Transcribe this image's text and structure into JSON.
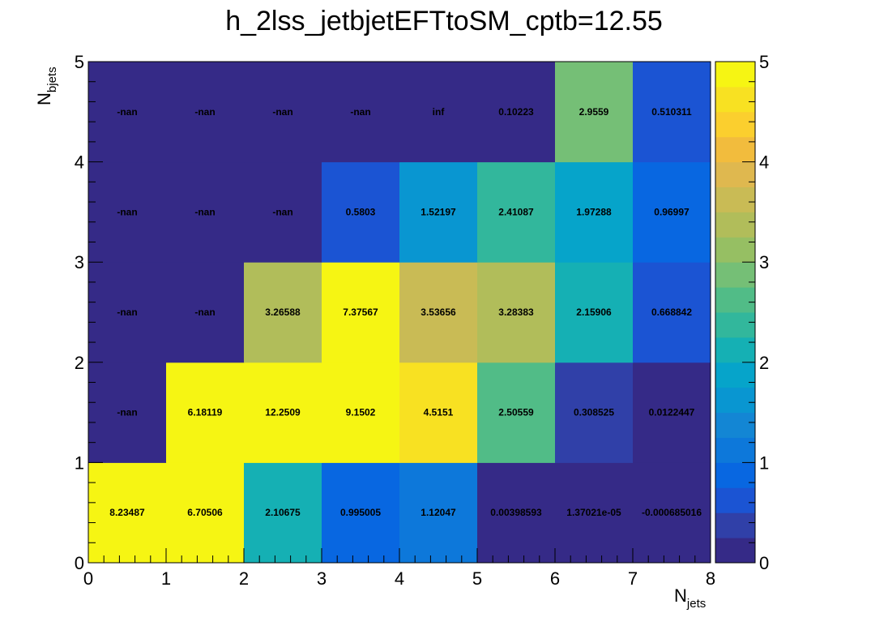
{
  "chart_data": {
    "type": "heatmap",
    "title": "h_2lss_jetbjetEFTtoSM_cptb=12.55",
    "xlabel": {
      "main": "N",
      "sub": "jets"
    },
    "ylabel": {
      "main": "N",
      "sub": "bjets"
    },
    "xlim": [
      0,
      8
    ],
    "ylim": [
      0,
      5
    ],
    "zlim": [
      0,
      5
    ],
    "x_ticks": [
      "0",
      "1",
      "2",
      "3",
      "4",
      "5",
      "6",
      "7",
      "8"
    ],
    "y_ticks": [
      "0",
      "1",
      "2",
      "3",
      "4",
      "5"
    ],
    "z_ticks": [
      "0",
      "1",
      "2",
      "3",
      "4",
      "5"
    ],
    "palette": [
      "#352a87",
      "#3040a8",
      "#1b54d3",
      "#0867e1",
      "#0d78da",
      "#1386d4",
      "#0996d1",
      "#06a4ca",
      "#15b0b4",
      "#32b79c",
      "#51bc87",
      "#75bf76",
      "#96bf63",
      "#b1bd5a",
      "#c9bb55",
      "#dfb84f",
      "#f2bc3d",
      "#fbcf2e",
      "#f8e122",
      "#f6f513"
    ],
    "rows": [
      {
        "y": 0,
        "cells": [
          {
            "x": 0,
            "value": 8.23487,
            "label": "8.23487"
          },
          {
            "x": 1,
            "value": 6.70506,
            "label": "6.70506"
          },
          {
            "x": 2,
            "value": 2.10675,
            "label": "2.10675"
          },
          {
            "x": 3,
            "value": 0.995005,
            "label": "0.995005"
          },
          {
            "x": 4,
            "value": 1.12047,
            "label": "1.12047"
          },
          {
            "x": 5,
            "value": 0.00398593,
            "label": "0.00398593"
          },
          {
            "x": 6,
            "value": 1.37021e-05,
            "label": "1.37021e-05"
          },
          {
            "x": 7,
            "value": -0.000685016,
            "label": "-0.000685016"
          }
        ]
      },
      {
        "y": 1,
        "cells": [
          {
            "x": 0,
            "value": null,
            "label": "-nan"
          },
          {
            "x": 1,
            "value": 6.18119,
            "label": "6.18119"
          },
          {
            "x": 2,
            "value": 12.2509,
            "label": "12.2509"
          },
          {
            "x": 3,
            "value": 9.1502,
            "label": "9.1502"
          },
          {
            "x": 4,
            "value": 4.5151,
            "label": "4.5151"
          },
          {
            "x": 5,
            "value": 2.50559,
            "label": "2.50559"
          },
          {
            "x": 6,
            "value": 0.308525,
            "label": "0.308525"
          },
          {
            "x": 7,
            "value": 0.0122447,
            "label": "0.0122447"
          }
        ]
      },
      {
        "y": 2,
        "cells": [
          {
            "x": 0,
            "value": null,
            "label": "-nan"
          },
          {
            "x": 1,
            "value": null,
            "label": "-nan"
          },
          {
            "x": 2,
            "value": 3.26588,
            "label": "3.26588"
          },
          {
            "x": 3,
            "value": 7.37567,
            "label": "7.37567"
          },
          {
            "x": 4,
            "value": 3.53656,
            "label": "3.53656"
          },
          {
            "x": 5,
            "value": 3.28383,
            "label": "3.28383"
          },
          {
            "x": 6,
            "value": 2.15906,
            "label": "2.15906"
          },
          {
            "x": 7,
            "value": 0.668842,
            "label": "0.668842"
          }
        ]
      },
      {
        "y": 3,
        "cells": [
          {
            "x": 0,
            "value": null,
            "label": "-nan"
          },
          {
            "x": 1,
            "value": null,
            "label": "-nan"
          },
          {
            "x": 2,
            "value": null,
            "label": "-nan"
          },
          {
            "x": 3,
            "value": 0.5803,
            "label": "0.5803"
          },
          {
            "x": 4,
            "value": 1.52197,
            "label": "1.52197"
          },
          {
            "x": 5,
            "value": 2.41087,
            "label": "2.41087"
          },
          {
            "x": 6,
            "value": 1.97288,
            "label": "1.97288"
          },
          {
            "x": 7,
            "value": 0.96997,
            "label": "0.96997"
          }
        ]
      },
      {
        "y": 4,
        "cells": [
          {
            "x": 0,
            "value": null,
            "label": "-nan"
          },
          {
            "x": 1,
            "value": null,
            "label": "-nan"
          },
          {
            "x": 2,
            "value": null,
            "label": "-nan"
          },
          {
            "x": 3,
            "value": null,
            "label": "-nan"
          },
          {
            "x": 4,
            "value": null,
            "label": "inf"
          },
          {
            "x": 5,
            "value": 0.10223,
            "label": "0.10223"
          },
          {
            "x": 6,
            "value": 2.9559,
            "label": "2.9559"
          },
          {
            "x": 7,
            "value": 0.510311,
            "label": "0.510311"
          }
        ]
      }
    ]
  }
}
